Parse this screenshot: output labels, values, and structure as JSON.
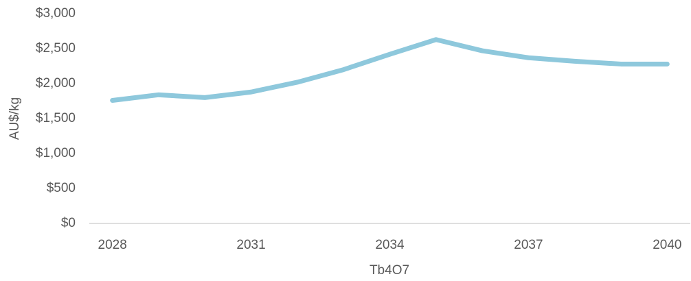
{
  "chart_data": {
    "type": "line",
    "x_label": "Tb4O7",
    "y_label": "AU$/kg",
    "x": [
      2028,
      2029,
      2030,
      2031,
      2032,
      2033,
      2034,
      2035,
      2036,
      2037,
      2038,
      2039,
      2040
    ],
    "series": [
      {
        "name": "Tb4O7",
        "color": "#8ec8dc",
        "values": [
          1760,
          1840,
          1800,
          1880,
          2020,
          2200,
          2420,
          2630,
          2470,
          2370,
          2320,
          2280,
          2280
        ]
      }
    ],
    "xlim": [
      2027.5,
      2040.5
    ],
    "xticks": [
      2028,
      2031,
      2034,
      2037,
      2040
    ],
    "ylim": [
      0,
      3000
    ],
    "yticks": [
      {
        "value": 0,
        "label": "$0"
      },
      {
        "value": 500,
        "label": "$500"
      },
      {
        "value": 1000,
        "label": "$1,000"
      },
      {
        "value": 1500,
        "label": "$1,500"
      },
      {
        "value": 2000,
        "label": "$2,000"
      },
      {
        "value": 2500,
        "label": "$2,500"
      },
      {
        "value": 3000,
        "label": "$3,000"
      }
    ],
    "grid": false
  }
}
